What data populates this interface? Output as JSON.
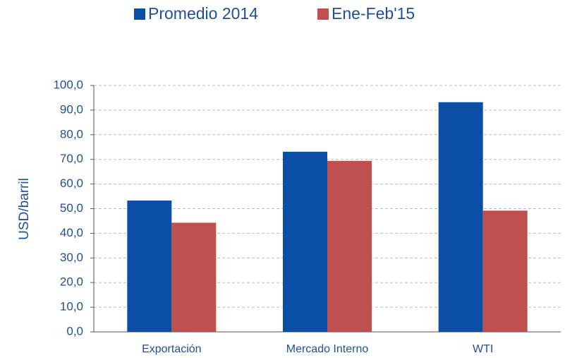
{
  "chart_data": {
    "type": "bar",
    "categories": [
      "Exportación",
      "Mercado Interno",
      "WTI"
    ],
    "series": [
      {
        "name": "Promedio 2014",
        "color": "#0a4ea6",
        "values": [
          53.3,
          73.1,
          93.2
        ]
      },
      {
        "name": "Ene-Feb'15",
        "color": "#c0504d",
        "values": [
          44.3,
          69.4,
          49.2
        ]
      }
    ],
    "y_label": "USD/barril",
    "ylim": [
      0,
      100
    ],
    "yticks": [
      {
        "value": 0,
        "label": "0,0"
      },
      {
        "value": 10,
        "label": "10,0"
      },
      {
        "value": 20,
        "label": "20,0"
      },
      {
        "value": 30,
        "label": "30,0"
      },
      {
        "value": 40,
        "label": "40,0"
      },
      {
        "value": 50,
        "label": "50,0"
      },
      {
        "value": 60,
        "label": "60,0"
      },
      {
        "value": 70,
        "label": "70,0"
      },
      {
        "value": 80,
        "label": "80,0"
      },
      {
        "value": 90,
        "label": "90,0"
      },
      {
        "value": 100,
        "label": "100,0"
      }
    ],
    "grid": true,
    "legend": "top"
  }
}
